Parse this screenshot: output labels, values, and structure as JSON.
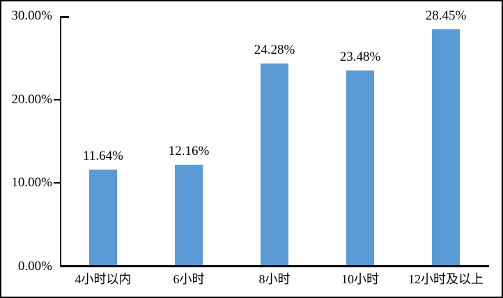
{
  "chart_data": {
    "type": "bar",
    "categories": [
      "4小时以内",
      "6小时",
      "8小时",
      "10小时",
      "12小时及以上"
    ],
    "values": [
      11.64,
      12.16,
      24.28,
      23.48,
      28.45
    ],
    "data_labels": [
      "11.64%",
      "12.16%",
      "24.28%",
      "23.48%",
      "28.45%"
    ],
    "y_tick_values": [
      0,
      10,
      20,
      30
    ],
    "y_tick_labels": [
      "0.00%",
      "10.00%",
      "20.00%",
      "30.00%"
    ],
    "ylim": [
      0,
      30
    ],
    "grid": false,
    "legend": "none",
    "bar_color": "#5B9BD5",
    "axis_color": "#000000",
    "text_color": "#000000",
    "background_color": "#FFFFFF",
    "frame_border_color": "#000000"
  }
}
